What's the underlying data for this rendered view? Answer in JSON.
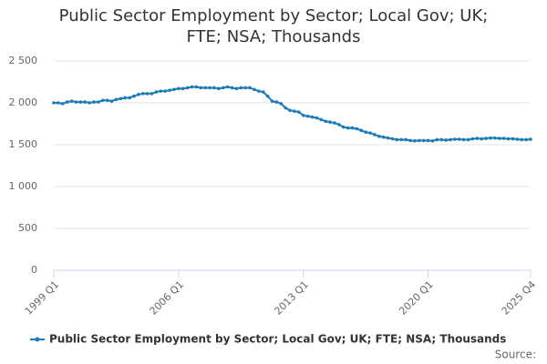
{
  "chart_data": {
    "type": "line",
    "title": "Public Sector Employment by Sector; Local Gov; UK; FTE; NSA; Thousands",
    "source": "Source:",
    "categories": [
      "1999 Q1",
      null,
      null,
      null,
      null,
      null,
      null,
      null,
      null,
      null,
      null,
      null,
      null,
      null,
      null,
      null,
      null,
      null,
      null,
      null,
      null,
      null,
      null,
      null,
      null,
      null,
      null,
      null,
      "2006 Q1",
      null,
      null,
      null,
      null,
      null,
      null,
      null,
      null,
      null,
      null,
      null,
      null,
      null,
      null,
      null,
      null,
      null,
      null,
      null,
      null,
      null,
      null,
      null,
      null,
      null,
      null,
      null,
      "2013 Q1",
      null,
      null,
      null,
      null,
      null,
      null,
      null,
      null,
      null,
      null,
      null,
      null,
      null,
      null,
      null,
      null,
      null,
      null,
      null,
      null,
      null,
      null,
      null,
      null,
      null,
      null,
      null,
      "2020 Q1",
      null,
      null,
      null,
      null,
      null,
      null,
      null,
      null,
      null,
      null,
      null,
      null,
      null,
      null,
      null,
      null,
      null,
      null,
      null,
      null,
      null,
      null,
      "2025 Q4"
    ],
    "series": [
      {
        "name": "Public Sector Employment by Sector; Local Gov; UK; FTE; NSA; Thousands",
        "color": "#1f7bb6",
        "values": [
          2000,
          2000,
          1990,
          2010,
          2020,
          2010,
          2010,
          2010,
          2000,
          2010,
          2010,
          2030,
          2030,
          2020,
          2040,
          2050,
          2060,
          2060,
          2080,
          2100,
          2110,
          2110,
          2110,
          2130,
          2140,
          2140,
          2150,
          2160,
          2170,
          2170,
          2180,
          2190,
          2190,
          2180,
          2180,
          2180,
          2180,
          2170,
          2180,
          2190,
          2180,
          2170,
          2180,
          2180,
          2180,
          2160,
          2140,
          2130,
          2080,
          2020,
          2010,
          1990,
          1940,
          1910,
          1900,
          1890,
          1850,
          1840,
          1830,
          1820,
          1800,
          1780,
          1770,
          1760,
          1740,
          1710,
          1700,
          1700,
          1690,
          1670,
          1650,
          1640,
          1620,
          1600,
          1590,
          1580,
          1570,
          1560,
          1560,
          1560,
          1550,
          1545,
          1550,
          1550,
          1550,
          1545,
          1560,
          1560,
          1555,
          1560,
          1565,
          1565,
          1560,
          1560,
          1570,
          1575,
          1570,
          1575,
          1580,
          1580,
          1575,
          1575,
          1570,
          1570,
          1565,
          1560,
          1560,
          1565
        ]
      }
    ],
    "ylim": [
      0,
      2500
    ],
    "yticks": [
      0,
      500,
      {
        "value": 1000,
        "label": "1 000"
      },
      {
        "value": 1500,
        "label": "1 500"
      },
      {
        "value": 2000,
        "label": "2 000"
      },
      {
        "value": 2500,
        "label": "2 500"
      }
    ],
    "grid": true
  }
}
